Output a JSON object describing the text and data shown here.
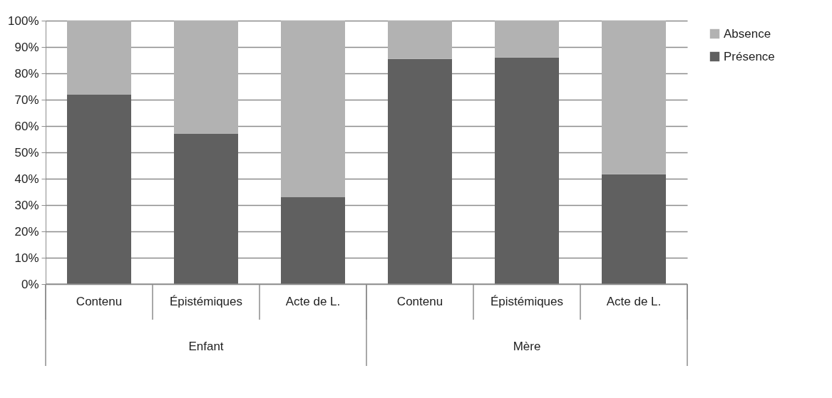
{
  "chart_data": {
    "type": "bar",
    "stacked": true,
    "categories": [
      "Contenu",
      "Épistémiques",
      "Acte de L.",
      "Contenu",
      "Épistémiques",
      "Acte de L."
    ],
    "series": [
      {
        "name": "Présence",
        "color": "#606060",
        "values": [
          71.9,
          57.0,
          33.1,
          85.5,
          86.0,
          41.7
        ]
      },
      {
        "name": "Absence",
        "color": "#b2b2b2",
        "values": [
          28.1,
          43.0,
          66.9,
          14.5,
          14.0,
          58.3
        ]
      }
    ],
    "annotations": [
      "Enfant",
      "Mère"
    ],
    "ylim": [
      0,
      100
    ],
    "yticks": [
      {
        "value": 0,
        "label": "0%"
      },
      {
        "value": 10,
        "label": "10%"
      },
      {
        "value": 20,
        "label": "20%"
      },
      {
        "value": 30,
        "label": "30%"
      },
      {
        "value": 40,
        "label": "40%"
      },
      {
        "value": 50,
        "label": "50%"
      },
      {
        "value": 60,
        "label": "60%"
      },
      {
        "value": 70,
        "label": "70%"
      },
      {
        "value": 80,
        "label": "80%"
      },
      {
        "value": 90,
        "label": "90%"
      },
      {
        "value": 100,
        "label": "100%"
      }
    ],
    "grid": "y",
    "legend": "right"
  }
}
